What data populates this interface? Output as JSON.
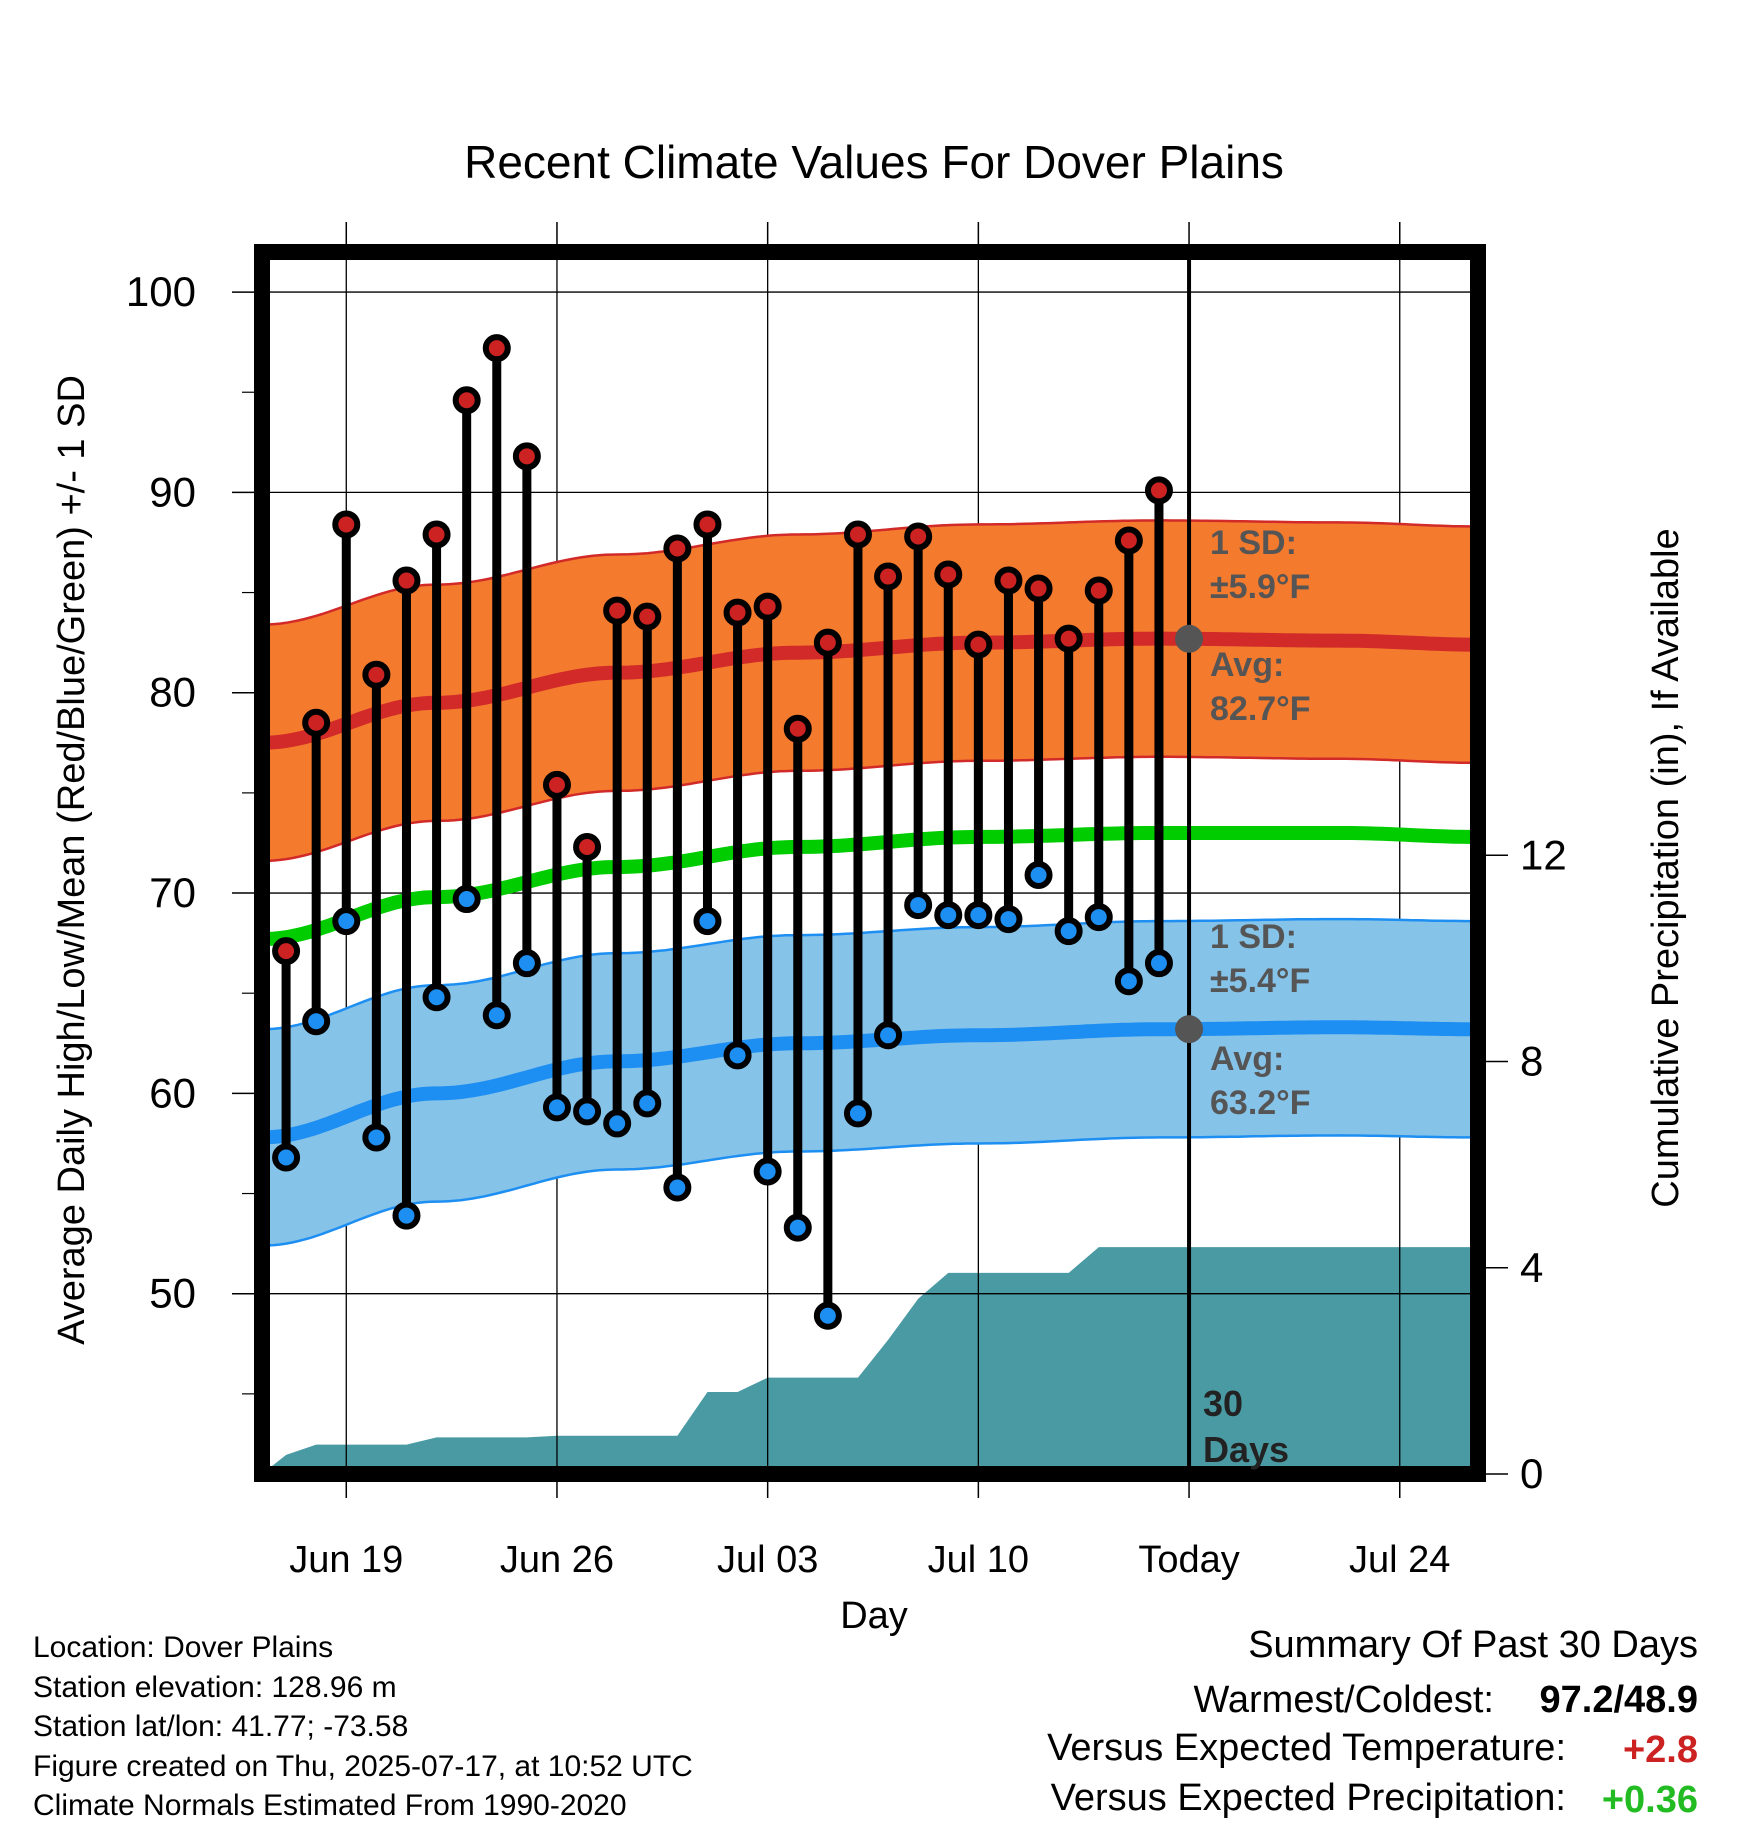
{
  "chart_data": {
    "type": "line",
    "title": "Recent Climate Values For Dover Plains",
    "xlabel": "Day",
    "ylabel_left": "Average Daily High/Low/Mean (Red/Blue/Green) +/- 1 SD",
    "ylabel_right": "Cumulative Precipitation (in), If Available",
    "x_ticks": [
      "Jun 19",
      "Jun 26",
      "Jul 03",
      "Jul 10",
      "Today",
      "Jul 24"
    ],
    "x_tick_day_index": [
      3,
      10,
      17,
      24,
      31,
      38
    ],
    "today_day_index": 31,
    "y_left_ticks": [
      "100",
      "90",
      "80",
      "70",
      "60",
      "50"
    ],
    "y_left_tick_values": [
      100,
      90,
      80,
      70,
      60,
      50
    ],
    "y_left_range": [
      41,
      102
    ],
    "y_right_ticks": [
      "12",
      "8",
      "4",
      "0"
    ],
    "y_right_tick_values": [
      12,
      8,
      4,
      0
    ],
    "y_right_range": [
      0,
      23.7
    ],
    "x_range_day_index": [
      0.2,
      40.6
    ],
    "daily_values": {
      "day_index": [
        1,
        2,
        3,
        4,
        5,
        6,
        7,
        8,
        9,
        10,
        11,
        12,
        13,
        14,
        15,
        16,
        17,
        18,
        19,
        20,
        21,
        22,
        23,
        24,
        25,
        26,
        27,
        28,
        29,
        30
      ],
      "high_F": [
        67.1,
        78.5,
        88.4,
        80.9,
        85.6,
        87.9,
        94.6,
        97.2,
        91.8,
        75.4,
        72.3,
        84.1,
        83.8,
        87.2,
        88.4,
        84.0,
        84.3,
        78.2,
        82.5,
        87.9,
        85.8,
        87.8,
        85.9,
        82.4,
        85.6,
        85.2,
        82.7,
        85.1,
        87.6,
        90.1
      ],
      "low_F": [
        56.8,
        63.6,
        68.6,
        57.8,
        53.9,
        64.8,
        69.7,
        63.9,
        66.5,
        59.3,
        59.1,
        58.5,
        59.5,
        55.3,
        68.6,
        61.9,
        56.1,
        53.3,
        48.9,
        59.0,
        62.9,
        69.4,
        68.9,
        68.9,
        68.7,
        70.9,
        68.1,
        68.8,
        65.6,
        66.5
      ]
    },
    "normals": {
      "day_index": [
        0.2,
        6,
        12,
        18,
        24,
        30,
        36,
        40.6
      ],
      "avg_high_F": [
        77.5,
        79.5,
        81.0,
        82.0,
        82.5,
        82.7,
        82.6,
        82.4
      ],
      "avg_low_F": [
        57.8,
        60.0,
        61.6,
        62.5,
        62.9,
        63.2,
        63.3,
        63.2
      ],
      "avg_mean_F": [
        67.7,
        69.8,
        71.3,
        72.3,
        72.8,
        73.0,
        73.0,
        72.8
      ],
      "high_sd_F": 5.9,
      "low_sd_F": 5.4
    },
    "cumulative_precip": {
      "day_index": [
        0.2,
        1,
        2,
        3,
        4,
        5,
        6,
        7,
        8,
        9,
        10,
        11,
        12,
        13,
        14,
        15,
        16,
        17,
        18,
        19,
        20,
        21,
        22,
        23,
        24,
        25,
        26,
        27,
        28,
        29,
        30,
        31,
        40.6
      ],
      "inches": [
        0.0,
        0.37,
        0.57,
        0.57,
        0.57,
        0.57,
        0.71,
        0.71,
        0.71,
        0.71,
        0.74,
        0.74,
        0.74,
        0.74,
        0.74,
        1.59,
        1.59,
        1.87,
        1.87,
        1.87,
        1.87,
        2.6,
        3.4,
        3.9,
        3.9,
        3.9,
        3.9,
        3.9,
        4.4,
        4.4,
        4.4,
        4.4,
        4.4
      ]
    },
    "annotations": {
      "high_sd_label": "1 SD:",
      "high_sd_value": "±5.9°F",
      "high_avg_label": "Avg:",
      "high_avg_value": "82.7°F",
      "low_sd_label": "1 SD:",
      "low_sd_value": "±5.4°F",
      "low_avg_label": "Avg:",
      "low_avg_value": "63.2°F",
      "days_number": "30",
      "days_label": "Days"
    },
    "colors": {
      "high_band": "#f47a2e",
      "high_line": "#d12a28",
      "high_marker": "#cc2222",
      "low_band": "#86c3e9",
      "low_line": "#1e8ff2",
      "low_marker": "#1e8ff2",
      "mean_line": "#00cc00",
      "precip_fill": "#4a9aa3",
      "avg_marker": "#555555"
    },
    "grid": true
  },
  "footer": {
    "location": "Location: Dover Plains",
    "elevation": "Station elevation: 128.96 m",
    "latlon": "Station lat/lon: 41.77; -73.58",
    "created": "Figure created on Thu, 2025-07-17, at 10:52 UTC",
    "normals": "Climate Normals Estimated From 1990-2020"
  },
  "summary": {
    "title": "Summary Of Past 30 Days",
    "warmest_coldest_label": "Warmest/Coldest:",
    "warmest_coldest_value": "97.2/48.9",
    "temp_label": "Versus Expected Temperature:",
    "temp_value": "+2.8",
    "temp_color": "#cc2222",
    "precip_label": "Versus Expected Precipitation:",
    "precip_value": "+0.36",
    "precip_color": "#22bb22"
  }
}
